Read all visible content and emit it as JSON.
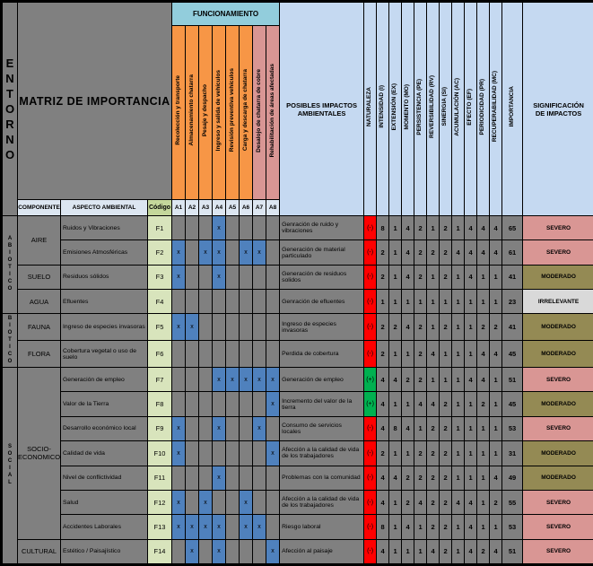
{
  "header": {
    "entorno": "ENTORNO",
    "title": "MATRIZ DE IMPORTANCIA",
    "funcionamiento": "FUNCIONAMIENTO",
    "componente": "COMPONENTE",
    "aspecto": "ASPECTO AMBIENTAL",
    "codigo": "Código",
    "impactos": "POSIBLES IMPACTOS AMBIENTALES",
    "significacion": "SIGNIFICACIÓN DE IMPACTOS"
  },
  "mark_symbol": "x",
  "activities": [
    {
      "code": "A1",
      "label": "Recolección y transporte",
      "bg": "#F79646"
    },
    {
      "code": "A2",
      "label": "Almacenamiento chatarra",
      "bg": "#F79646"
    },
    {
      "code": "A3",
      "label": "Pesaje y despacho",
      "bg": "#F79646"
    },
    {
      "code": "A4",
      "label": "Ingreso y salida de vehículos",
      "bg": "#F79646"
    },
    {
      "code": "A5",
      "label": "Revisión preventiva vehículos",
      "bg": "#F79646"
    },
    {
      "code": "A6",
      "label": "Carga y descarga de chatarra",
      "bg": "#F79646"
    },
    {
      "code": "A7",
      "label": "Desalojo de chatarra de cobre",
      "bg": "#D99694"
    },
    {
      "code": "A8",
      "label": "Rehabilitación de áreas afectadas",
      "bg": "#D99694"
    }
  ],
  "criteria": [
    "NATURALEZA",
    "INTENSIDAD (I)",
    "EXTENSIÓN (EX)",
    "MOMENTO (MO)",
    "PERSISTENCIA (PE)",
    "REVERSIBILIDAD (RV)",
    "SINERGIA (SI)",
    "ACUMULACIÓN (AC)",
    "EFECTO (EF)",
    "PERIODICIDAD (PR)",
    "RECUPERABILIDAD (MC)",
    "IMPORTANCIA"
  ],
  "groups": [
    {
      "label": "ABIOTICO",
      "start": 0,
      "span": 4
    },
    {
      "label": "BIOTICO",
      "start": 4,
      "span": 2
    },
    {
      "label": "SOCIAL",
      "start": 6,
      "span": 8
    }
  ],
  "components": [
    {
      "label": "AIRE",
      "start": 0,
      "span": 2
    },
    {
      "label": "SUELO",
      "start": 2,
      "span": 1
    },
    {
      "label": "AGUA",
      "start": 3,
      "span": 1
    },
    {
      "label": "FAUNA",
      "start": 4,
      "span": 1
    },
    {
      "label": "FLORA",
      "start": 5,
      "span": 1
    },
    {
      "label": "SOCIO-ECONOMICO",
      "start": 6,
      "span": 7
    },
    {
      "label": "CULTURAL",
      "start": 13,
      "span": 1
    }
  ],
  "rows": [
    {
      "aspect": "Ruidos y Vibraciones",
      "code": "F1",
      "marks": [
        "A4"
      ],
      "impact": "Genración de ruido y vibraciones",
      "nature": "(-)",
      "values": [
        8,
        1,
        4,
        2,
        1,
        2,
        1,
        4,
        4,
        4
      ],
      "importance": 65,
      "significance": "SEVERO"
    },
    {
      "aspect": "Emisiones Atmosféricas",
      "code": "F2",
      "marks": [
        "A1",
        "A3",
        "A4",
        "A6",
        "A7"
      ],
      "impact": "Generación de material particulado",
      "nature": "(-)",
      "values": [
        2,
        1,
        4,
        2,
        2,
        2,
        4,
        4,
        4,
        4
      ],
      "importance": 61,
      "significance": "SEVERO"
    },
    {
      "aspect": "Residuos sólidos",
      "code": "F3",
      "marks": [
        "A1",
        "A4"
      ],
      "impact": "Generación de residuos solidos",
      "nature": "(-)",
      "values": [
        2,
        1,
        4,
        2,
        1,
        2,
        1,
        4,
        1,
        1
      ],
      "importance": 41,
      "significance": "MODERADO"
    },
    {
      "aspect": "Efluentes",
      "code": "F4",
      "marks": [],
      "impact": "Genración de efluentes",
      "nature": "(-)",
      "values": [
        1,
        1,
        1,
        1,
        1,
        1,
        1,
        1,
        1,
        1
      ],
      "importance": 23,
      "significance": "IRRELEVANTE"
    },
    {
      "aspect": "Ingreso de especies invasoras",
      "code": "F5",
      "marks": [
        "A1",
        "A2"
      ],
      "impact": "Ingreso de especies invasoras",
      "nature": "(-)",
      "values": [
        2,
        2,
        4,
        2,
        1,
        2,
        1,
        1,
        2,
        2
      ],
      "importance": 41,
      "significance": "MODERADO"
    },
    {
      "aspect": "Cobertura vegetal o uso de suelo",
      "code": "F6",
      "marks": [],
      "impact": "Perdida de cobertura",
      "nature": "(-)",
      "values": [
        2,
        1,
        1,
        2,
        4,
        1,
        1,
        1,
        4,
        4
      ],
      "importance": 45,
      "significance": "MODERADO"
    },
    {
      "aspect": "Generación de empleo",
      "code": "F7",
      "marks": [
        "A4",
        "A5",
        "A6",
        "A7",
        "A8"
      ],
      "impact": "Generación de empleo",
      "nature": "(+)",
      "values": [
        4,
        4,
        2,
        2,
        1,
        1,
        1,
        4,
        4,
        1
      ],
      "importance": 51,
      "significance": "SEVERO"
    },
    {
      "aspect": "Valor de la Tierra",
      "code": "F8",
      "marks": [
        "A8"
      ],
      "impact": "Incremento del valor de la tierra",
      "nature": "(+)",
      "values": [
        4,
        1,
        1,
        4,
        4,
        2,
        1,
        1,
        2,
        1
      ],
      "importance": 45,
      "significance": "MODERADO"
    },
    {
      "aspect": "Desarrollo económico local",
      "code": "F9",
      "marks": [
        "A1",
        "A4",
        "A7"
      ],
      "impact": "Consumo de servicios locales",
      "nature": "(-)",
      "values": [
        4,
        8,
        4,
        1,
        2,
        2,
        1,
        1,
        1,
        1
      ],
      "importance": 53,
      "significance": "SEVERO"
    },
    {
      "aspect": "Calidad de vida",
      "code": "F10",
      "marks": [
        "A1",
        "A8"
      ],
      "impact": "Afección a la calidad de vida de los trabajadores",
      "nature": "(-)",
      "values": [
        2,
        1,
        1,
        2,
        2,
        2,
        1,
        1,
        1,
        1
      ],
      "importance": 31,
      "significance": "MODERADO"
    },
    {
      "aspect": "Nivel de conflictividad",
      "code": "F11",
      "marks": [
        "A4"
      ],
      "impact": "Problemas con la comunidad",
      "nature": "(-)",
      "values": [
        4,
        4,
        2,
        2,
        2,
        2,
        1,
        1,
        1,
        4
      ],
      "importance": 49,
      "significance": "MODERADO"
    },
    {
      "aspect": "Salud",
      "code": "F12",
      "marks": [
        "A1",
        "A3",
        "A6"
      ],
      "impact": "Afección a la calidad de vida de los trabajadores",
      "nature": "(-)",
      "values": [
        4,
        1,
        2,
        4,
        2,
        2,
        4,
        4,
        1,
        2
      ],
      "importance": 55,
      "significance": "SEVERO"
    },
    {
      "aspect": "Accidentes Laborales",
      "code": "F13",
      "marks": [
        "A1",
        "A2",
        "A3",
        "A4",
        "A6",
        "A7"
      ],
      "impact": "Riesgo laboral",
      "nature": "(-)",
      "values": [
        8,
        1,
        4,
        1,
        2,
        2,
        1,
        4,
        1,
        1
      ],
      "importance": 53,
      "significance": "SEVERO"
    },
    {
      "aspect": "Estético / Paisajístico",
      "code": "F14",
      "marks": [
        "A2",
        "A4",
        "A8"
      ],
      "impact": "Afección al paisaje",
      "nature": "(-)",
      "values": [
        4,
        1,
        1,
        1,
        4,
        2,
        1,
        4,
        2,
        4
      ],
      "importance": 51,
      "significance": "SEVERO"
    }
  ],
  "colors": {
    "grid_bg": "#808080",
    "mark": "#4F81BD",
    "nature_negative": "#FF0000",
    "nature_positive": "#00B050",
    "significance": {
      "SEVERO": "#D99694",
      "MODERADO": "#948A54",
      "IRRELEVANTE": "#D9D9D9"
    }
  }
}
